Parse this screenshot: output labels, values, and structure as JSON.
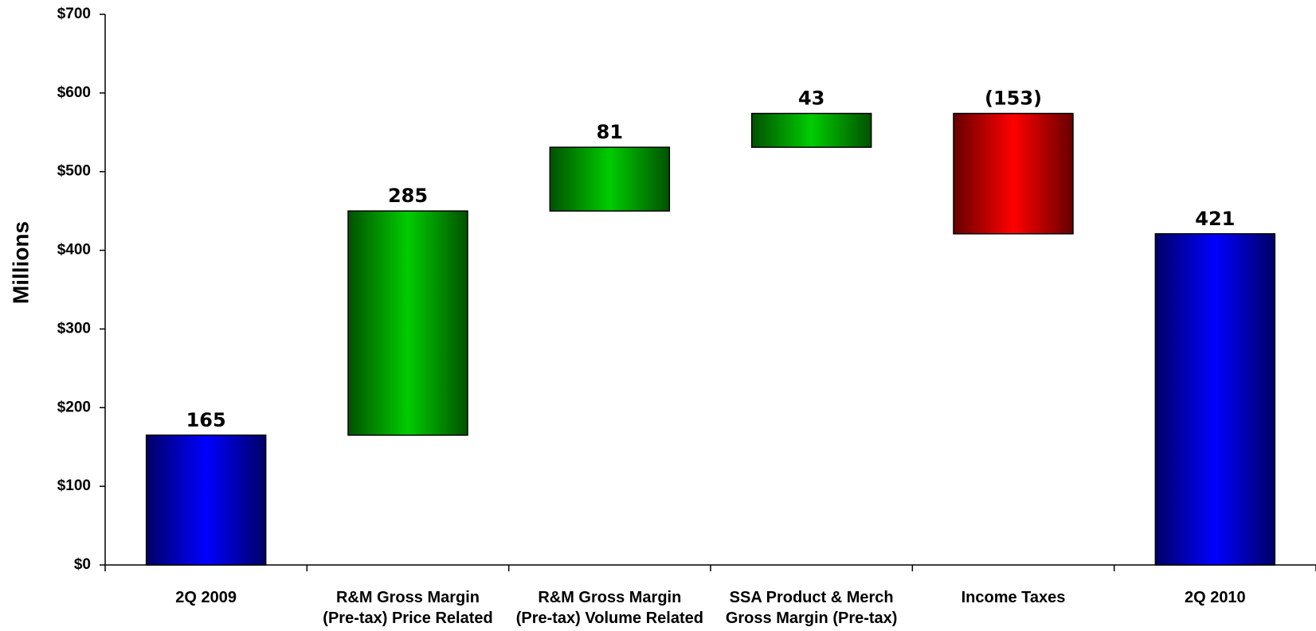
{
  "chart_data": {
    "type": "waterfall",
    "y_label": "Millions",
    "categories": [
      "2Q 2009",
      "R&M Gross Margin\n(Pre-tax)  Price Related",
      "R&M Gross Margin\n(Pre-tax)  Volume Related",
      "SSA Product & Merch\nGross Margin (Pre-tax)",
      "Income Taxes",
      "2Q 2010"
    ],
    "values": [
      165,
      285,
      81,
      43,
      -153,
      421
    ],
    "value_labels": [
      "165",
      "285",
      "81",
      "43",
      "(153)",
      "421"
    ],
    "colors": [
      "#0000ff",
      "#00cc00",
      "#00cc00",
      "#00cc00",
      "#ff0000",
      "#0000ff"
    ],
    "ylim": [
      0,
      700
    ],
    "yticks": [
      {
        "value": 0,
        "label": "$0"
      },
      {
        "value": 100,
        "label": "$100"
      },
      {
        "value": 200,
        "label": "$200"
      },
      {
        "value": 300,
        "label": "$300"
      },
      {
        "value": 400,
        "label": "$400"
      },
      {
        "value": 500,
        "label": "$500"
      },
      {
        "value": 600,
        "label": "$600"
      },
      {
        "value": 700,
        "label": "$700"
      }
    ],
    "grid": false
  }
}
